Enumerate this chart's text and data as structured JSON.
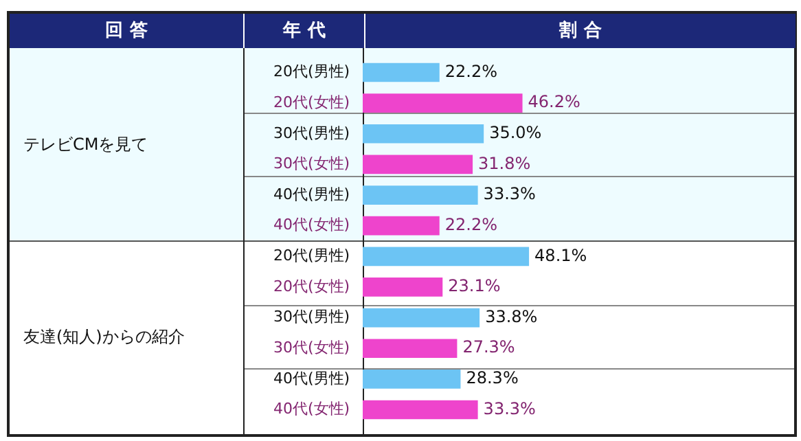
{
  "chart_data": {
    "type": "bar",
    "orientation": "horizontal",
    "legend": false,
    "annotations": [
      "回 答",
      "年 代",
      "割 合",
      "テレビCMを見て",
      "友達(知人)からの紹介"
    ],
    "categories": [
      "20代(男性)",
      "20代(女性)",
      "30代(男性)",
      "30代(女性)",
      "40代(男性)",
      "40代(女性)",
      "20代(男性)",
      "20代(女性)",
      "30代(男性)",
      "30代(女性)",
      "40代(男性)",
      "40代(女性)"
    ],
    "values": [
      22.2,
      46.2,
      35.0,
      31.8,
      33.3,
      22.2,
      48.1,
      23.1,
      33.8,
      27.3,
      28.3,
      33.3
    ],
    "value_labels": [
      "22.2%",
      "46.2%",
      "35.0%",
      "31.8%",
      "33.3%",
      "22.2%",
      "48.1%",
      "23.1%",
      "33.8%",
      "27.3%",
      "28.3%",
      "33.3%"
    ],
    "colors": [
      "#6cc4f4",
      "#ee44cc",
      "#6cc4f4",
      "#ee44cc",
      "#6cc4f4",
      "#ee44cc",
      "#6cc4f4",
      "#ee44cc",
      "#6cc4f4",
      "#ee44cc",
      "#6cc4f4",
      "#ee44cc"
    ]
  }
}
